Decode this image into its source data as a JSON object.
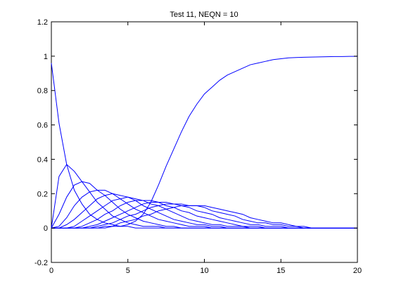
{
  "figure": {
    "background": "#ffffff"
  },
  "chart_data": {
    "type": "line",
    "title": "Test 11, NEQN = 10",
    "xlabel": "",
    "ylabel": "",
    "xlim": [
      0,
      20
    ],
    "ylim": [
      -0.2,
      1.2
    ],
    "x_ticks": [
      0,
      5,
      10,
      15,
      20
    ],
    "x_tick_labels": [
      "0",
      "5",
      "10",
      "15",
      "20"
    ],
    "y_ticks": [
      -0.2,
      0,
      0.2,
      0.4,
      0.6,
      0.8,
      1,
      1.2
    ],
    "y_tick_labels": [
      "-0.2",
      "0",
      "0.2",
      "0.4",
      "0.6",
      "0.8",
      "1",
      "1.2"
    ],
    "grid": false,
    "legend": "none",
    "line_color": "#0000ff",
    "x": [
      0,
      0.5,
      1,
      1.5,
      2,
      2.5,
      3,
      3.5,
      4,
      4.5,
      5,
      5.5,
      6,
      6.5,
      7,
      7.5,
      8,
      8.5,
      9,
      9.5,
      10,
      10.5,
      11,
      11.5,
      12,
      12.5,
      13,
      13.5,
      14,
      14.5,
      15,
      15.5,
      16,
      16.5,
      17,
      17.5,
      18,
      18.5,
      19,
      19.5,
      20
    ],
    "series": [
      {
        "values": [
          0.96,
          0.61,
          0.37,
          0.22,
          0.14,
          0.08,
          0.05,
          0.03,
          0.02,
          0.01,
          0.01,
          0.0,
          0.0,
          0.0,
          0.0,
          0.0,
          0.0,
          0.0,
          0.0,
          0.0,
          0.0,
          0.0,
          0.0,
          0.0,
          0.0,
          0.0,
          0.0,
          0.0,
          0.0,
          0.0,
          0.0,
          0.0,
          0.0,
          0.0,
          0.0,
          0.0,
          0.0,
          0.0,
          0.0,
          0.0,
          0.0
        ]
      },
      {
        "values": [
          0.0,
          0.3,
          0.37,
          0.33,
          0.27,
          0.21,
          0.15,
          0.11,
          0.07,
          0.05,
          0.03,
          0.02,
          0.01,
          0.01,
          0.01,
          0.0,
          0.0,
          0.0,
          0.0,
          0.0,
          0.0,
          0.0,
          0.0,
          0.0,
          0.0,
          0.0,
          0.0,
          0.0,
          0.0,
          0.0,
          0.0,
          0.0,
          0.0,
          0.0,
          0.0,
          0.0,
          0.0,
          0.0,
          0.0,
          0.0,
          0.0
        ]
      },
      {
        "values": [
          0.0,
          0.08,
          0.18,
          0.25,
          0.27,
          0.26,
          0.22,
          0.19,
          0.15,
          0.11,
          0.08,
          0.06,
          0.04,
          0.03,
          0.02,
          0.01,
          0.01,
          0.0,
          0.0,
          0.0,
          0.0,
          0.0,
          0.0,
          0.0,
          0.0,
          0.0,
          0.0,
          0.0,
          0.0,
          0.0,
          0.0,
          0.0,
          0.0,
          0.0,
          0.0,
          0.0,
          0.0,
          0.0,
          0.0,
          0.0,
          0.0
        ]
      },
      {
        "values": [
          0.0,
          0.01,
          0.06,
          0.13,
          0.18,
          0.21,
          0.22,
          0.22,
          0.2,
          0.17,
          0.14,
          0.11,
          0.09,
          0.07,
          0.05,
          0.04,
          0.03,
          0.02,
          0.01,
          0.01,
          0.01,
          0.0,
          0.0,
          0.0,
          0.0,
          0.0,
          0.0,
          0.0,
          0.0,
          0.0,
          0.0,
          0.0,
          0.0,
          0.0,
          0.0,
          0.0,
          0.0,
          0.0,
          0.0,
          0.0,
          0.0
        ]
      },
      {
        "values": [
          0.0,
          0.0,
          0.02,
          0.05,
          0.09,
          0.13,
          0.17,
          0.19,
          0.2,
          0.19,
          0.18,
          0.16,
          0.13,
          0.11,
          0.09,
          0.07,
          0.05,
          0.04,
          0.03,
          0.02,
          0.02,
          0.01,
          0.01,
          0.0,
          0.0,
          0.0,
          0.0,
          0.0,
          0.0,
          0.0,
          0.0,
          0.0,
          0.0,
          0.0,
          0.0,
          0.0,
          0.0,
          0.0,
          0.0,
          0.0,
          0.0
        ]
      },
      {
        "values": [
          0.0,
          0.0,
          0.0,
          0.01,
          0.04,
          0.07,
          0.1,
          0.13,
          0.16,
          0.17,
          0.18,
          0.17,
          0.16,
          0.14,
          0.13,
          0.11,
          0.09,
          0.07,
          0.05,
          0.04,
          0.03,
          0.02,
          0.02,
          0.01,
          0.01,
          0.01,
          0.0,
          0.0,
          0.0,
          0.0,
          0.0,
          0.0,
          0.0,
          0.0,
          0.0,
          0.0,
          0.0,
          0.0,
          0.0,
          0.0,
          0.0
        ]
      },
      {
        "values": [
          0.0,
          0.0,
          0.0,
          0.0,
          0.01,
          0.03,
          0.05,
          0.08,
          0.1,
          0.13,
          0.15,
          0.16,
          0.16,
          0.16,
          0.15,
          0.13,
          0.12,
          0.1,
          0.09,
          0.07,
          0.06,
          0.05,
          0.04,
          0.03,
          0.02,
          0.01,
          0.01,
          0.01,
          0.0,
          0.0,
          0.0,
          0.0,
          0.0,
          0.0,
          0.0,
          0.0,
          0.0,
          0.0,
          0.0,
          0.0,
          0.0
        ]
      },
      {
        "values": [
          0.0,
          0.0,
          0.0,
          0.0,
          0.0,
          0.01,
          0.02,
          0.04,
          0.06,
          0.08,
          0.1,
          0.12,
          0.14,
          0.15,
          0.15,
          0.15,
          0.14,
          0.13,
          0.12,
          0.1,
          0.09,
          0.08,
          0.06,
          0.05,
          0.04,
          0.03,
          0.02,
          0.02,
          0.01,
          0.01,
          0.01,
          0.0,
          0.0,
          0.0,
          0.0,
          0.0,
          0.0,
          0.0,
          0.0,
          0.0,
          0.0
        ]
      },
      {
        "values": [
          0.0,
          0.0,
          0.0,
          0.0,
          0.0,
          0.0,
          0.01,
          0.02,
          0.03,
          0.05,
          0.07,
          0.08,
          0.1,
          0.12,
          0.13,
          0.14,
          0.14,
          0.14,
          0.13,
          0.13,
          0.12,
          0.1,
          0.09,
          0.08,
          0.07,
          0.05,
          0.04,
          0.03,
          0.03,
          0.02,
          0.02,
          0.01,
          0.01,
          0.0,
          0.0,
          0.0,
          0.0,
          0.0,
          0.0,
          0.0,
          0.0
        ]
      },
      {
        "values": [
          0.0,
          0.0,
          0.0,
          0.0,
          0.0,
          0.0,
          0.0,
          0.01,
          0.01,
          0.03,
          0.04,
          0.05,
          0.07,
          0.08,
          0.1,
          0.11,
          0.12,
          0.13,
          0.13,
          0.13,
          0.13,
          0.12,
          0.11,
          0.1,
          0.09,
          0.08,
          0.06,
          0.05,
          0.04,
          0.03,
          0.03,
          0.02,
          0.01,
          0.01,
          0.0,
          0.0,
          0.0,
          0.0,
          0.0,
          0.0,
          0.0
        ]
      },
      {
        "values": [
          0.0,
          0.0,
          0.0,
          0.0,
          0.0,
          0.0,
          0.0,
          0.0,
          0.01,
          0.01,
          0.02,
          0.04,
          0.08,
          0.15,
          0.25,
          0.36,
          0.46,
          0.56,
          0.65,
          0.72,
          0.78,
          0.82,
          0.86,
          0.89,
          0.91,
          0.93,
          0.95,
          0.96,
          0.97,
          0.98,
          0.985,
          0.99,
          0.992,
          0.994,
          0.995,
          0.996,
          0.997,
          0.998,
          0.998,
          0.999,
          0.999
        ]
      }
    ]
  }
}
